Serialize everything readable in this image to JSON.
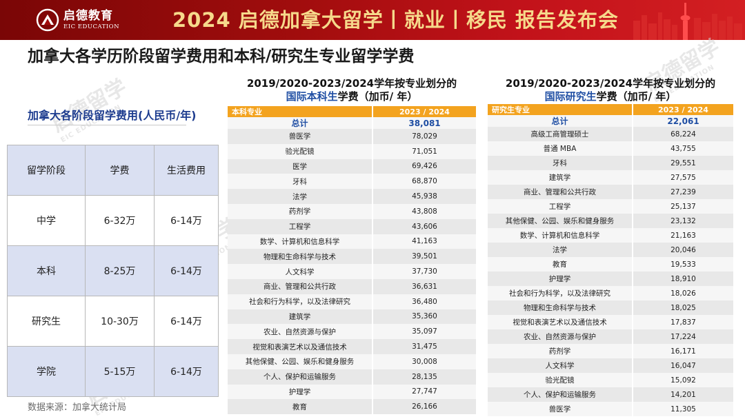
{
  "banner": {
    "logo_cn": "启德教育",
    "logo_en": "EIC EDUCATION",
    "year": "2024",
    "title": "启德加拿大留学丨就业丨移民 报告发布会"
  },
  "page_title": "加拿大各学历阶段留学费用和本科/研究生专业留学学费",
  "stage_costs": {
    "title": "加拿大各阶段留学费用(人民币/年)",
    "headers": [
      "留学阶段",
      "学费",
      "生活费用"
    ],
    "rows": [
      [
        "中学",
        "6-32万",
        "6-14万"
      ],
      [
        "本科",
        "8-25万",
        "6-14万"
      ],
      [
        "研究生",
        "10-30万",
        "6-14万"
      ],
      [
        "学院",
        "5-15万",
        "6-14万"
      ]
    ],
    "source": "数据来源：加拿大统计局"
  },
  "undergrad": {
    "title_line1": "2019/2020-2023/2024学年按专业划分的",
    "title_highlight": "国际本科生",
    "title_rest": "学费（加币/ 年）",
    "header_name": "本科专业",
    "header_year": "2023 / 2024",
    "total_label": "总计",
    "total_value": "38,081",
    "rows": [
      [
        "兽医学",
        "78,029"
      ],
      [
        "验光配镜",
        "71,051"
      ],
      [
        "医学",
        "69,426"
      ],
      [
        "牙科",
        "68,870"
      ],
      [
        "法学",
        "45,938"
      ],
      [
        "药剂学",
        "43,808"
      ],
      [
        "工程学",
        "43,606"
      ],
      [
        "数学、计算机和信息科学",
        "41,163"
      ],
      [
        "物理和生命科学与技术",
        "39,501"
      ],
      [
        "人文科学",
        "37,730"
      ],
      [
        "商业、管理和公共行政",
        "36,631"
      ],
      [
        "社会和行为科学，以及法律研究",
        "36,480"
      ],
      [
        "建筑学",
        "35,360"
      ],
      [
        "农业、自然资源与保护",
        "35,097"
      ],
      [
        "视觉和表演艺术以及通信技术",
        "31,475"
      ],
      [
        "其他保健、公园、娱乐和健身服务",
        "30,008"
      ],
      [
        "个人、保护和运输服务",
        "28,135"
      ],
      [
        "护理学",
        "27,747"
      ],
      [
        "教育",
        "26,166"
      ]
    ]
  },
  "graduate": {
    "title_line1": "2019/2020-2023/2024学年按专业划分的",
    "title_highlight": "国际研究生",
    "title_rest": "学费（加币/ 年）",
    "header_name": "研究生专业",
    "header_year": "2023 / 2024",
    "total_label": "总计",
    "total_value": "22,061",
    "rows": [
      [
        "高级工商管理硕士",
        "68,224"
      ],
      [
        "普通 MBA",
        "43,755"
      ],
      [
        "牙科",
        "29,551"
      ],
      [
        "建筑学",
        "27,575"
      ],
      [
        "商业、管理和公共行政",
        "27,239"
      ],
      [
        "工程学",
        "25,137"
      ],
      [
        "其他保健、公园、娱乐和健身服务",
        "23,132"
      ],
      [
        "数学、计算机和信息科学",
        "21,163"
      ],
      [
        "法学",
        "20,046"
      ],
      [
        "教育",
        "19,533"
      ],
      [
        "护理学",
        "18,910"
      ],
      [
        "社会和行为科学，以及法律研究",
        "18,026"
      ],
      [
        "物理和生命科学与技术",
        "18,025"
      ],
      [
        "视觉和表演艺术以及通信技术",
        "17,837"
      ],
      [
        "农业、自然资源与保护",
        "17,224"
      ],
      [
        "药剂学",
        "16,171"
      ],
      [
        "人文科学",
        "16,047"
      ],
      [
        "验光配镜",
        "15,092"
      ],
      [
        "个人、保护和运输服务",
        "14,201"
      ],
      [
        "兽医学",
        "11,305"
      ]
    ]
  },
  "watermark": {
    "cn": "启德留学",
    "en": "EIC EDUCATION"
  },
  "colors": {
    "banner_red": "#a10d0d",
    "banner_gold": "#f6d98b",
    "table_header_orange": "#f3a31f",
    "highlight_blue": "#1f4ea3",
    "left_header_blue": "#dae0f2"
  }
}
